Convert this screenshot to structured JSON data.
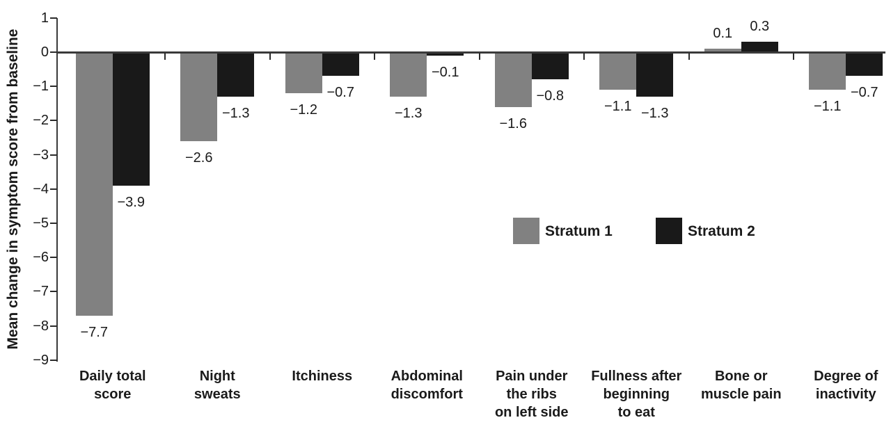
{
  "chart_data": {
    "type": "bar",
    "ylabel": "Mean change in symptom score from baseline",
    "ylim": [
      -9,
      1
    ],
    "yticks": [
      1,
      0,
      -1,
      -2,
      -3,
      -4,
      -5,
      -6,
      -7,
      -8,
      -9
    ],
    "grid": false,
    "value_labels": true,
    "legend_position": "center-right",
    "categories": [
      "Daily total score",
      "Night sweats",
      "Itchiness",
      "Abdominal discomfort",
      "Pain under the ribs on left side",
      "Fullness after beginning to eat",
      "Bone or muscle pain",
      "Degree of inactivity"
    ],
    "category_lines": [
      [
        "Daily total",
        "score"
      ],
      [
        "Night",
        "sweats"
      ],
      [
        "Itchiness"
      ],
      [
        "Abdominal",
        "discomfort"
      ],
      [
        "Pain under",
        "the ribs",
        "on left side"
      ],
      [
        "Fullness after",
        "beginning",
        "to eat"
      ],
      [
        "Bone or",
        "muscle pain"
      ],
      [
        "Degree of",
        "inactivity"
      ]
    ],
    "series": [
      {
        "name": "Stratum 1",
        "color": "#818181",
        "values": [
          -7.7,
          -2.6,
          -1.2,
          -1.3,
          -1.6,
          -1.1,
          0.1,
          -1.1
        ]
      },
      {
        "name": "Stratum 2",
        "color": "#191919",
        "values": [
          -3.9,
          -1.3,
          -0.7,
          -0.1,
          -0.8,
          -1.3,
          0.3,
          -0.7
        ]
      }
    ],
    "colors": {
      "axis": "#3a3a3a",
      "text": "#1a1a1a",
      "background": "#ffffff"
    }
  }
}
